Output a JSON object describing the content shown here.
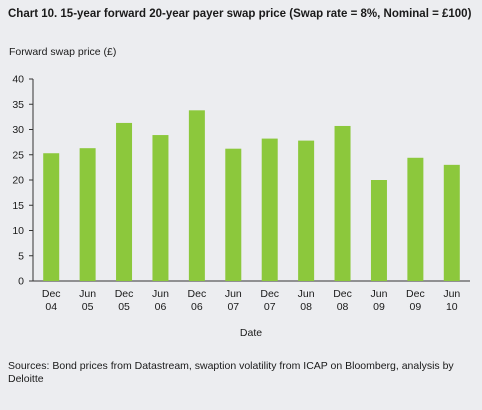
{
  "chart_data": {
    "type": "bar",
    "title": "Chart 10. 15-year forward 20-year payer swap price (Swap rate = 8%, Nominal = £100)",
    "ylabel": "Forward swap price (£)",
    "xlabel": "Date",
    "categories": [
      [
        "Dec",
        "04"
      ],
      [
        "Jun",
        "05"
      ],
      [
        "Dec",
        "05"
      ],
      [
        "Jun",
        "06"
      ],
      [
        "Dec",
        "06"
      ],
      [
        "Jun",
        "07"
      ],
      [
        "Dec",
        "07"
      ],
      [
        "Jun",
        "08"
      ],
      [
        "Dec",
        "08"
      ],
      [
        "Jun",
        "09"
      ],
      [
        "Dec",
        "09"
      ],
      [
        "Jun",
        "10"
      ]
    ],
    "values": [
      25.3,
      26.3,
      31.3,
      28.9,
      33.8,
      26.2,
      28.2,
      27.8,
      30.7,
      20.0,
      24.4,
      23.0
    ],
    "ylim": [
      0,
      40
    ],
    "yticks": [
      0,
      5,
      10,
      15,
      20,
      25,
      30,
      35,
      40
    ],
    "grid": false,
    "bar_color": "#8cc83c"
  },
  "source": "Sources: Bond prices from Datastream, swaption volatility from ICAP on Bloomberg, analysis by Deloitte"
}
